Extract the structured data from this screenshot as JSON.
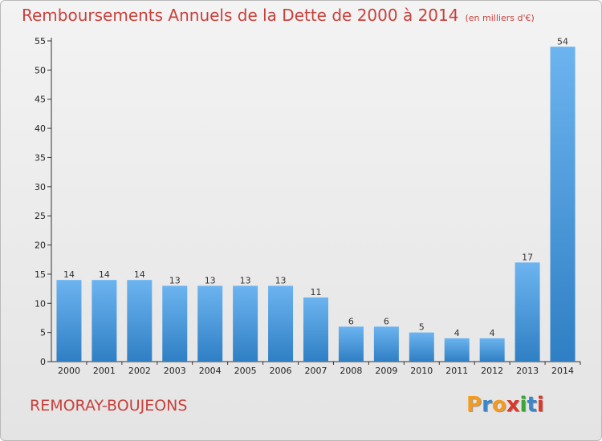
{
  "title": "Remboursements Annuels de la Dette de 2000 à 2014",
  "unit": "(en milliers d'€)",
  "commune": "REMORAY-BOUJEONS",
  "logo": {
    "letters": [
      "P",
      "r",
      "o",
      "x",
      "i",
      "t",
      "i"
    ],
    "colors": [
      "#f39a1f",
      "#3a86c8",
      "#f39a1f",
      "#d9382b",
      "#3aa635",
      "#3a86c8",
      "#d9382b"
    ]
  },
  "chart_data": {
    "type": "bar",
    "title": "Remboursements Annuels de la Dette de 2000 à 2014",
    "xlabel": "",
    "ylabel": "",
    "categories": [
      "2000",
      "2001",
      "2002",
      "2003",
      "2004",
      "2005",
      "2006",
      "2007",
      "2008",
      "2009",
      "2010",
      "2011",
      "2012",
      "2013",
      "2014"
    ],
    "values": [
      14,
      14,
      14,
      13,
      13,
      13,
      13,
      11,
      6,
      6,
      5,
      4,
      4,
      17,
      54
    ],
    "ylim": [
      0,
      55
    ],
    "yticks": [
      0,
      5,
      10,
      15,
      20,
      25,
      30,
      35,
      40,
      45,
      50,
      55
    ],
    "grid": false,
    "bar_color": "#3a8fd6",
    "bar_color_light": "#6cb4f0"
  }
}
